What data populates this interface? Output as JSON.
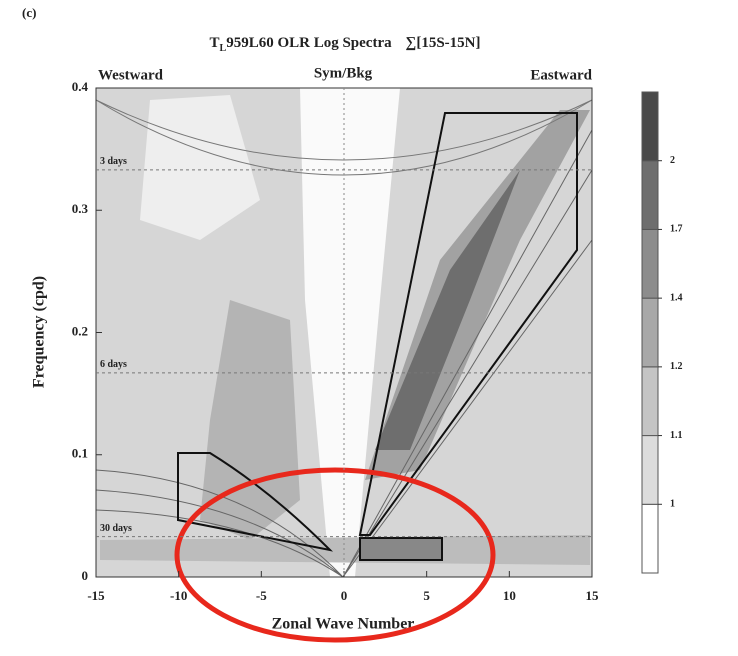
{
  "chart_data": {
    "type": "contour",
    "panel_label": "(c)",
    "title_parts": [
      "T",
      "L",
      "959L60 OLR Log Spectra",
      "∑[15S-15N]"
    ],
    "annotations": [
      "Westward",
      "Sym/Bkg",
      "Eastward"
    ],
    "xlabel": "Zonal Wave Number",
    "ylabel": "Frequency (cpd)",
    "xlim": [
      -15,
      15
    ],
    "xticks": [
      -15,
      -10,
      -5,
      0,
      5,
      10,
      15
    ],
    "ylim": [
      0,
      0.4
    ],
    "yticks": [
      0,
      0.1,
      0.2,
      0.3,
      0.4
    ],
    "period_lines": [
      {
        "label": "3 days",
        "value": 0.333
      },
      {
        "label": "6 days",
        "value": 0.167
      },
      {
        "label": "30 days",
        "value": 0.033
      }
    ],
    "colorbar": {
      "levels": [
        1,
        1.1,
        1.2,
        1.4,
        1.7,
        2
      ],
      "colors": [
        "#ffffff",
        "#dcdcdc",
        "#c4c4c4",
        "#a8a8a8",
        "#8c8c8c",
        "#6e6e6e",
        "#4a4a4a"
      ]
    }
  }
}
